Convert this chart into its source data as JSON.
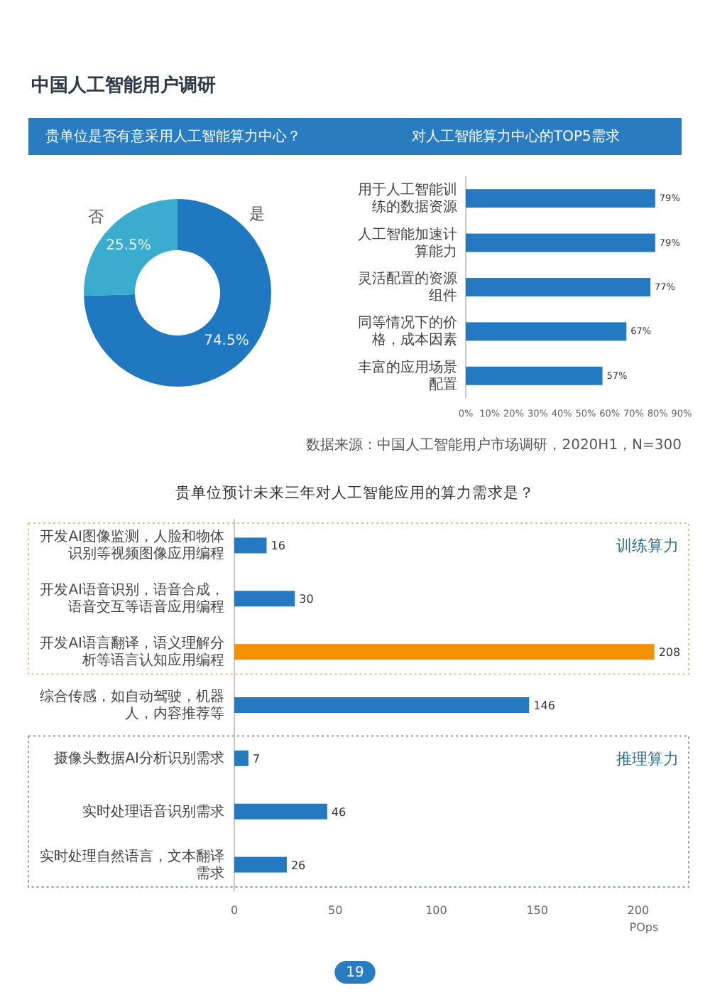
{
  "chart_data": [
    {
      "type": "donut",
      "title": "贵单位是否有意采用人工智能算力中心？",
      "categories": [
        "是",
        "否"
      ],
      "values": [
        74.5,
        25.5
      ],
      "colors": [
        "#2079c0",
        "#3aadcf"
      ],
      "value_labels": [
        "74.5%",
        "25.5%"
      ],
      "annotations": [
        "中国人工智能用户调研"
      ]
    },
    {
      "type": "bar",
      "orientation": "horizontal",
      "title": "对人工智能算力中心的TOP5需求",
      "categories": [
        "用于人工智能训练的数据资源",
        "人工智能加速计算能力",
        "灵活配置的资源组件",
        "同等情况下的价格，成本因素",
        "丰富的应用场景配置"
      ],
      "values": [
        79,
        79,
        77,
        67,
        57
      ],
      "color": "#2479c0",
      "value_labels": [
        "79%",
        "79%",
        "77%",
        "67%",
        "57%"
      ],
      "xlim": [
        0,
        90
      ],
      "xticks": [
        {
          "value": 0,
          "label": "0%"
        },
        {
          "value": 10,
          "label": "10%"
        },
        {
          "value": 20,
          "label": "20%"
        },
        {
          "value": 30,
          "label": "30%"
        },
        {
          "value": 40,
          "label": "40%"
        },
        {
          "value": 50,
          "label": "50%"
        },
        {
          "value": 60,
          "label": "60%"
        },
        {
          "value": 70,
          "label": "70%"
        },
        {
          "value": 80,
          "label": "80%"
        },
        {
          "value": 90,
          "label": "90%"
        }
      ],
      "annotations": [
        "数据来源：中国人工智能用户市场调研，2020H1，N=300"
      ]
    },
    {
      "type": "bar",
      "orientation": "horizontal",
      "title": "贵单位预计未来三年对人工智能应用的算力需求是？",
      "categories": [
        "开发AI图像监测，人脸和物体识别等视频图像应用编程",
        "开发AI语音识别，语音合成，语音交互等语音应用编程",
        "开发AI语言翻译，语义理解分析等语言认知应用编程",
        "综合传感，如自动驾驶，机器人，内容推荐等",
        "摄像头数据AI分析识别需求",
        "实时处理语音识别需求",
        "实时处理自然语言，文本翻译需求"
      ],
      "values": [
        16,
        30,
        208,
        146,
        7,
        46,
        26
      ],
      "colors": [
        "#2479c0",
        "#2479c0",
        "#f39200",
        "#2479c0",
        "#2479c0",
        "#2479c0",
        "#2479c0"
      ],
      "data_labels": true,
      "xlim": [
        0,
        225
      ],
      "xticks": [
        0,
        50,
        100,
        150,
        200
      ],
      "xlabel": "POps",
      "annotations": [
        "训练算力",
        "推理算力",
        "19"
      ]
    }
  ]
}
